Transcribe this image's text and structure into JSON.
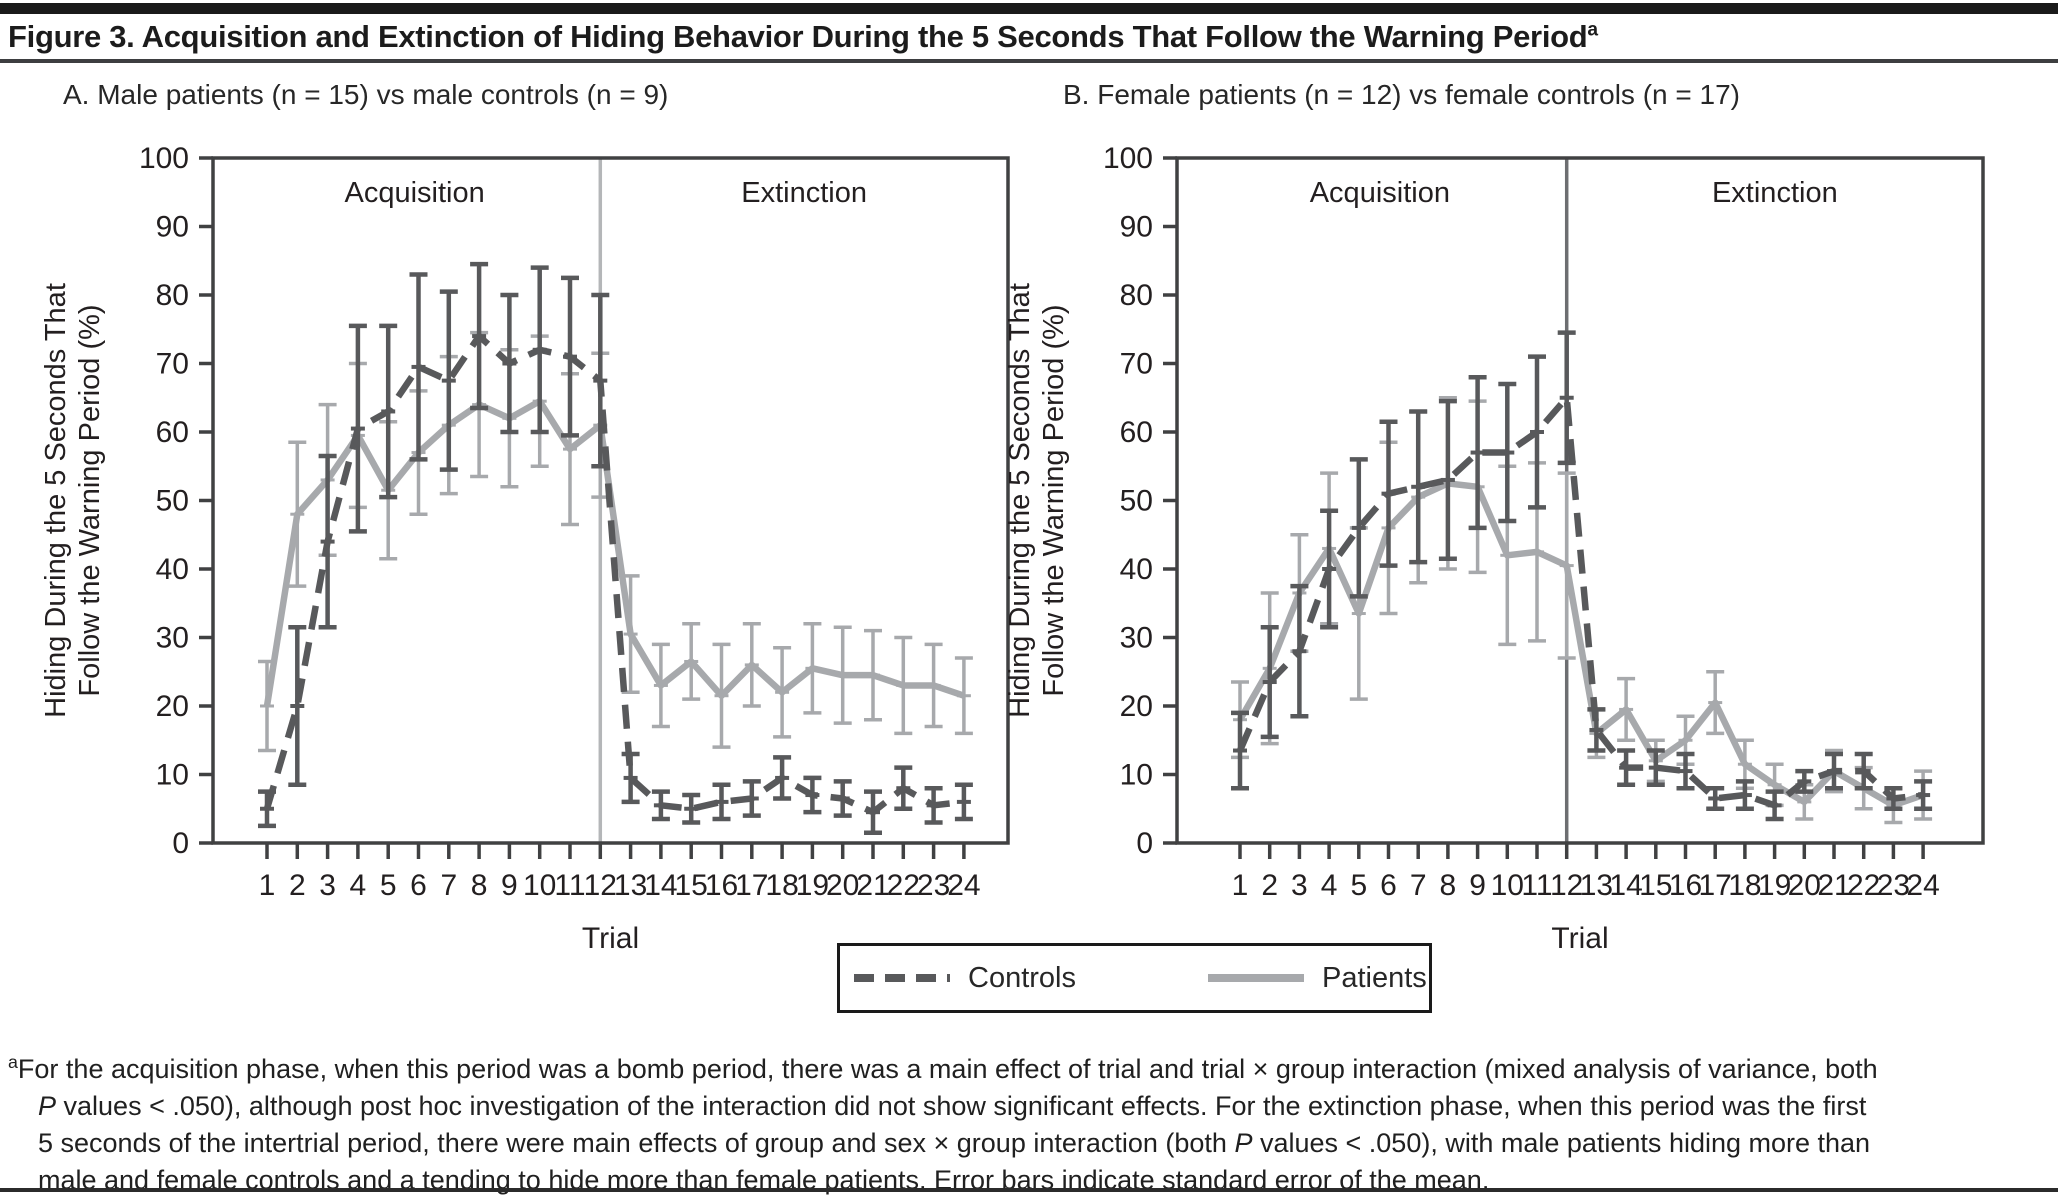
{
  "figure": {
    "title": "Figure 3. Acquisition and Extinction of Hiding Behavior During the 5 Seconds That Follow the Warning Period",
    "title_sup": "a"
  },
  "legend": {
    "items": [
      {
        "label": "Controls",
        "style": "dashed",
        "color": "#58595b"
      },
      {
        "label": "Patients",
        "style": "solid",
        "color": "#a7a9ac"
      }
    ]
  },
  "footnote": {
    "lines": [
      [
        {
          "t": "a",
          "sup": true
        },
        {
          "t": "For the acquisition phase, when this period was a bomb period, there was a main effect of trial and trial × group interaction (mixed analysis of variance, both"
        }
      ],
      [
        {
          "t": "P",
          "i": true
        },
        {
          "t": " values < .050), although post hoc investigation of the interaction did not show significant effects. For the extinction phase, when this period was the first"
        }
      ],
      [
        {
          "t": "5 seconds of the intertrial period, there were main effects of group and sex × group interaction (both "
        },
        {
          "t": "P",
          "i": true
        },
        {
          "t": " values < .050), with male patients hiding more than"
        }
      ],
      [
        {
          "t": "male and female controls and a tending to hide more than female patients. Error bars indicate standard error of the mean."
        }
      ]
    ]
  },
  "chart_data": [
    {
      "type": "line",
      "panel": "A",
      "subtitle": "A. Male patients (n = 15) vs male controls (n = 9)",
      "xlabel": "Trial",
      "ylabel_lines": [
        "Hiding During the 5 Seconds That",
        "Follow the Warning Period (%)"
      ],
      "phase_labels": [
        "Acquisition",
        "Extinction"
      ],
      "divider_x": 12,
      "divider_color": "#b4b6b8",
      "axis_color": "#404142",
      "tick_text_color": "#231f20",
      "ylim": [
        0,
        100
      ],
      "yticks": [
        0,
        10,
        20,
        30,
        40,
        50,
        60,
        70,
        80,
        90,
        100
      ],
      "x": [
        1,
        2,
        3,
        4,
        5,
        6,
        7,
        8,
        9,
        10,
        11,
        12,
        13,
        14,
        15,
        16,
        17,
        18,
        19,
        20,
        21,
        22,
        23,
        24
      ],
      "series": [
        {
          "name": "Controls",
          "style": "dashed",
          "color": "#58595b",
          "values": [
            5,
            20,
            44,
            60.5,
            63,
            69.5,
            67.5,
            74,
            70,
            72,
            71,
            67.5,
            9.5,
            5.5,
            5,
            6,
            6.5,
            9.5,
            7,
            6.5,
            4.5,
            8,
            5.5,
            6
          ],
          "sem": [
            2.5,
            11.5,
            12.5,
            15,
            12.5,
            13.5,
            13,
            10.5,
            10,
            12,
            11.5,
            12.5,
            3.5,
            2,
            2,
            2.5,
            2.5,
            3,
            2.5,
            2.5,
            3,
            3,
            2.5,
            2.5
          ]
        },
        {
          "name": "Patients",
          "style": "solid",
          "color": "#a7a9ac",
          "values": [
            20,
            48,
            53,
            59.5,
            51.5,
            57,
            61,
            64,
            62,
            64.5,
            57.5,
            61,
            30.5,
            23,
            26.5,
            21.5,
            26,
            22,
            25.5,
            24.5,
            24.5,
            23,
            23,
            21.5
          ],
          "sem": [
            6.5,
            10.5,
            11,
            10.5,
            10,
            9,
            10,
            10.5,
            10,
            9.5,
            11,
            10.5,
            8.5,
            6,
            5.5,
            7.5,
            6,
            6.5,
            6.5,
            7,
            6.5,
            7,
            6,
            5.5
          ]
        }
      ]
    },
    {
      "type": "line",
      "panel": "B",
      "subtitle": "B. Female patients (n = 12) vs female controls (n = 17)",
      "xlabel": "Trial",
      "ylabel_lines": [
        "Hiding During the 5 Seconds That",
        "Follow the Warning Period (%)"
      ],
      "phase_labels": [
        "Acquisition",
        "Extinction"
      ],
      "divider_x": 12,
      "divider_color": "#6d6e71",
      "axis_color": "#404142",
      "tick_text_color": "#231f20",
      "ylim": [
        0,
        100
      ],
      "yticks": [
        0,
        10,
        20,
        30,
        40,
        50,
        60,
        70,
        80,
        90,
        100
      ],
      "x": [
        1,
        2,
        3,
        4,
        5,
        6,
        7,
        8,
        9,
        10,
        11,
        12,
        13,
        14,
        15,
        16,
        17,
        18,
        19,
        20,
        21,
        22,
        23,
        24
      ],
      "series": [
        {
          "name": "Controls",
          "style": "dashed",
          "color": "#58595b",
          "values": [
            13.5,
            23.5,
            28,
            40,
            46,
            51,
            52,
            53,
            57,
            57,
            60,
            65,
            16.5,
            11,
            11,
            10.5,
            6.5,
            7,
            5.5,
            9,
            10.5,
            10.5,
            6.5,
            7
          ],
          "sem": [
            5.5,
            8,
            9.5,
            8.5,
            10,
            10.5,
            11,
            11.5,
            11,
            10,
            11,
            9.5,
            3,
            2.5,
            2.5,
            2.5,
            1.5,
            2,
            2,
            1.5,
            2.5,
            2.5,
            1.5,
            2
          ]
        },
        {
          "name": "Patients",
          "style": "solid",
          "color": "#a7a9ac",
          "values": [
            18,
            25.5,
            36.5,
            43,
            33.5,
            46,
            50.5,
            52.5,
            52,
            42,
            42.5,
            40.5,
            16,
            19.5,
            12,
            15,
            20.5,
            11.5,
            8.5,
            6,
            10.5,
            8,
            5.5,
            7
          ],
          "sem": [
            5.5,
            11,
            8.5,
            11,
            12.5,
            12.5,
            12.5,
            12.5,
            12.5,
            13,
            13,
            13.5,
            3.5,
            4.5,
            3,
            3.5,
            4.5,
            3.5,
            3,
            2.5,
            3,
            3,
            2.5,
            3.5
          ]
        }
      ]
    }
  ]
}
